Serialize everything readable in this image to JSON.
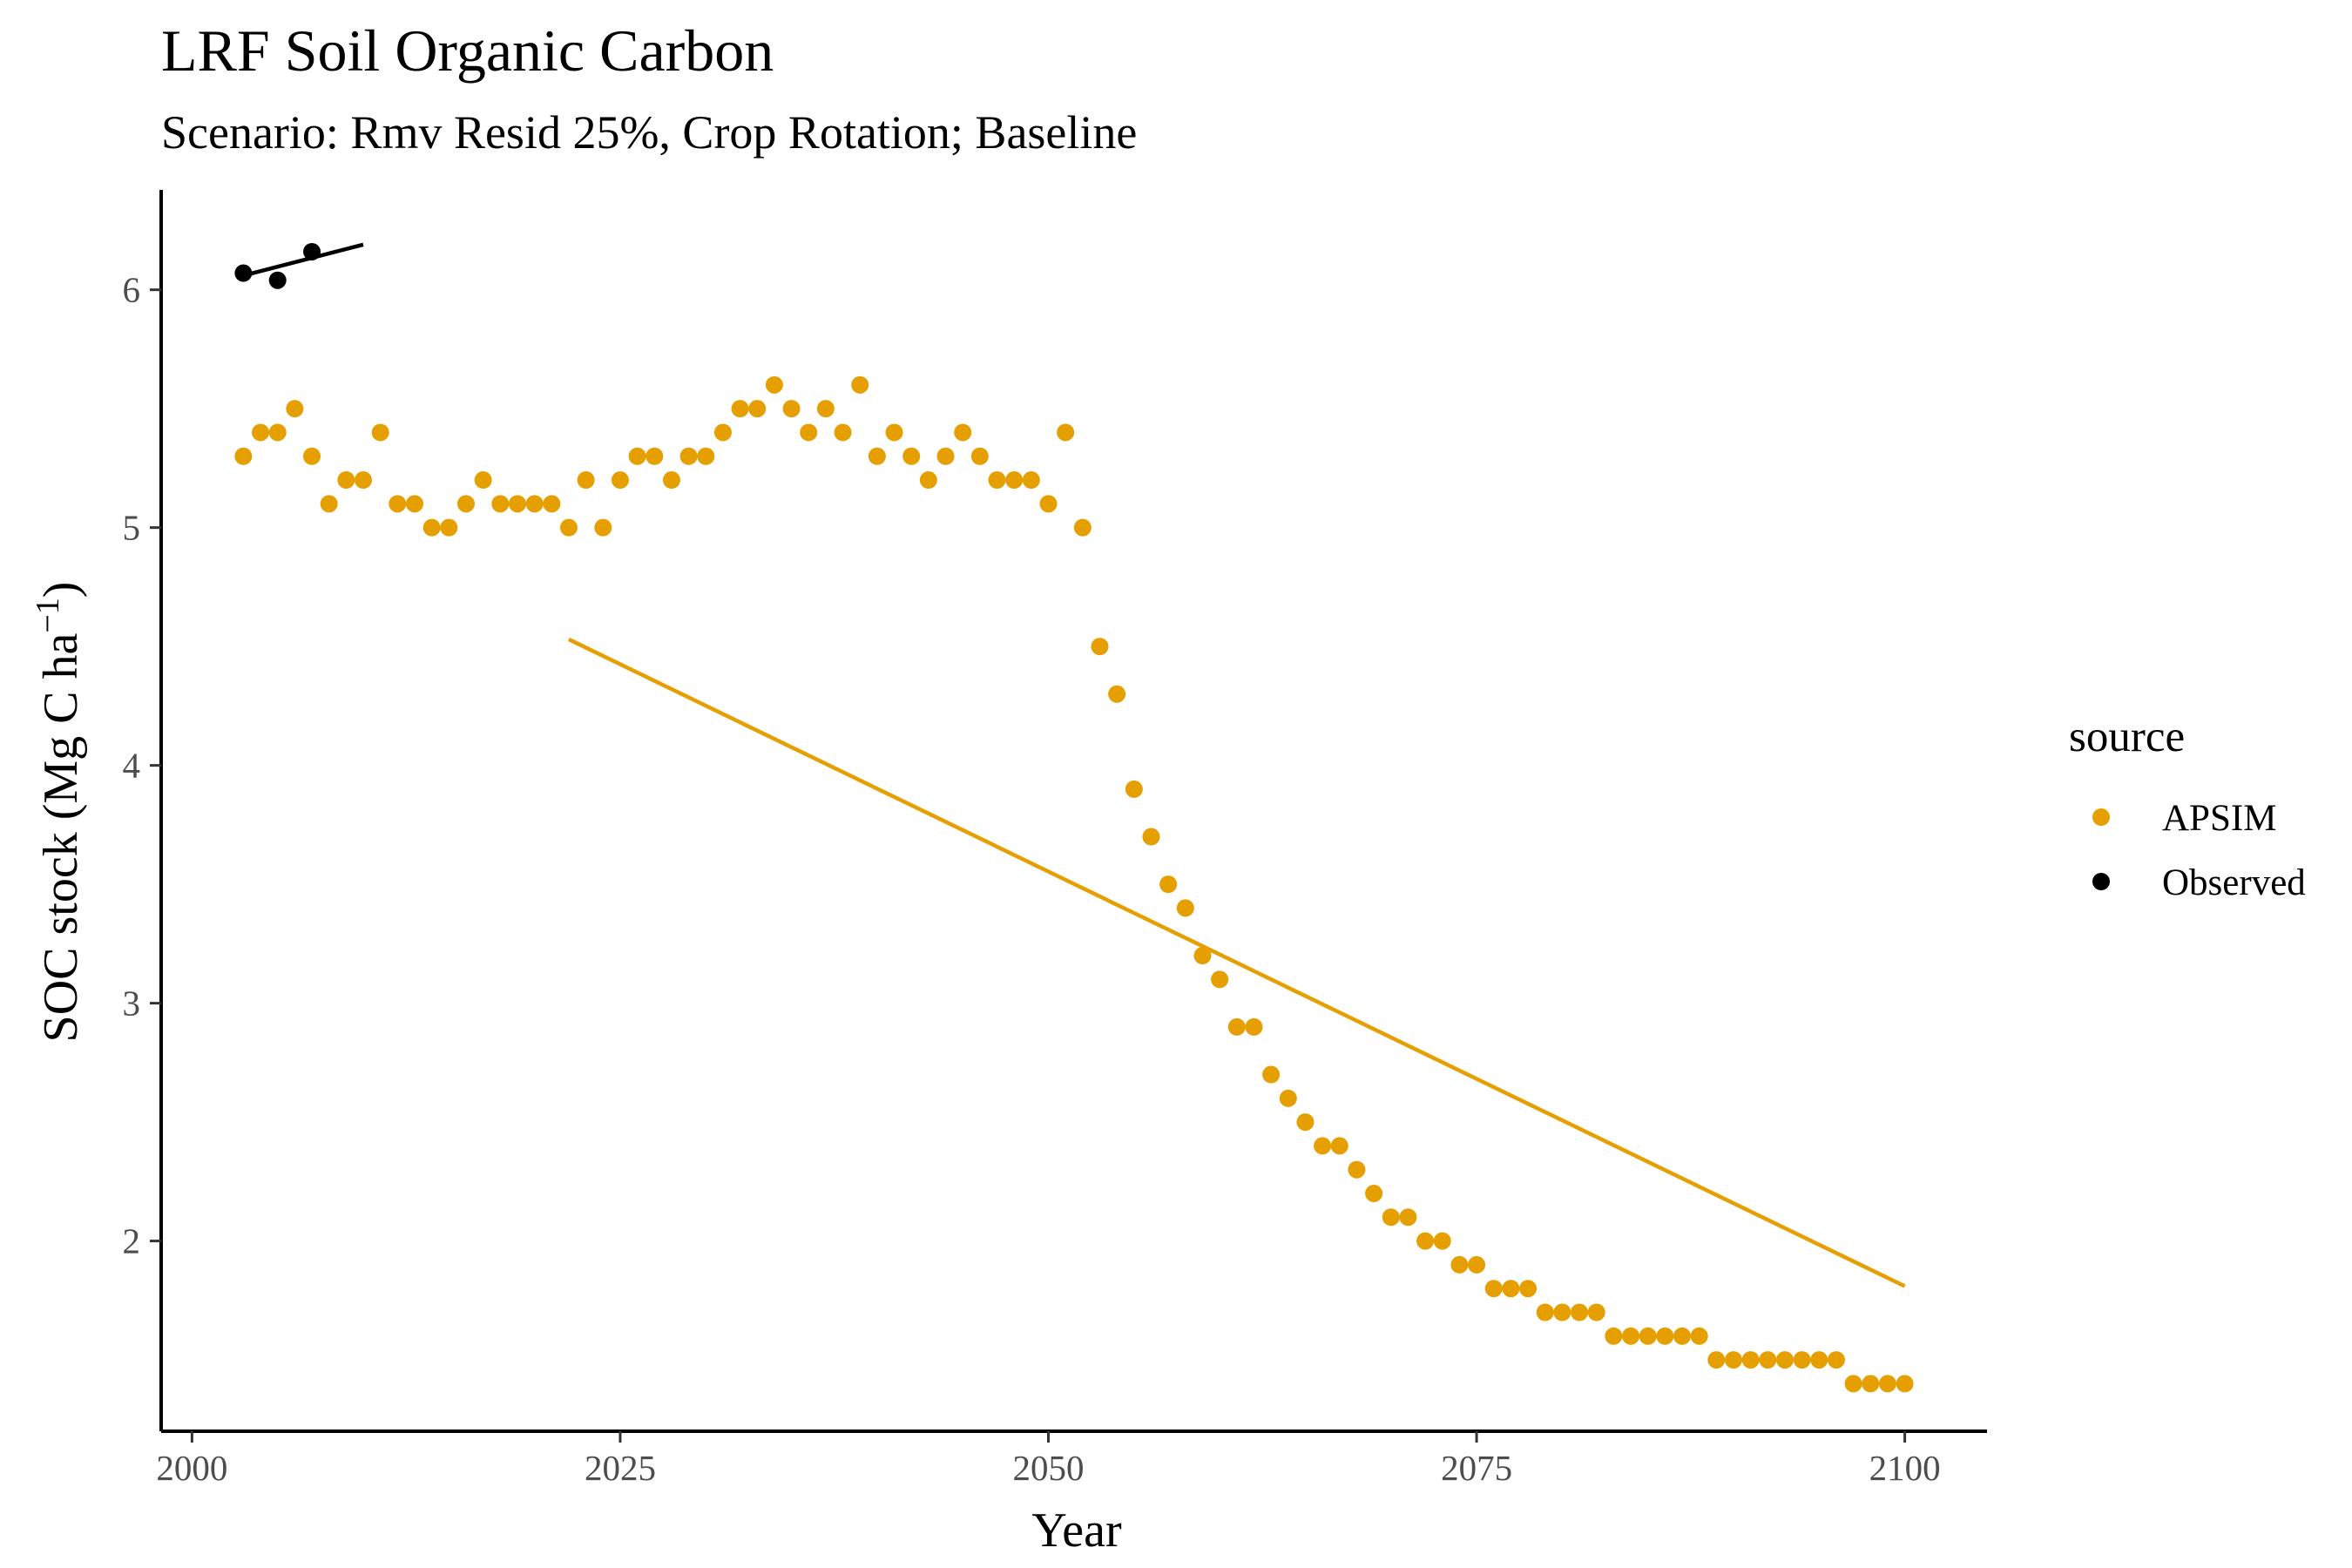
{
  "chart_data": {
    "type": "scatter",
    "title": "LRF Soil Organic Carbon",
    "subtitle": "Scenario: Rmv Resid 25%, Crop Rotation; Baseline",
    "xlabel": "Year",
    "ylabel_main": "SOC stock (Mg C ha",
    "ylabel_sup": "−1",
    "ylabel_end": ")",
    "xlim": [
      1998.2,
      2104.8
    ],
    "ylim": [
      1.2,
      6.42
    ],
    "x_ticks": [
      2000,
      2025,
      2050,
      2075,
      2100
    ],
    "x_tick_labels": [
      "2000",
      "2025",
      "2050",
      "2075",
      "2100"
    ],
    "y_ticks": [
      2,
      3,
      4,
      5,
      6
    ],
    "y_tick_labels": [
      "2",
      "3",
      "4",
      "5",
      "6"
    ],
    "grid": false,
    "legend": {
      "title": "source",
      "position": "right",
      "entries": [
        "APSIM",
        "Observed"
      ]
    },
    "series": [
      {
        "name": "APSIM",
        "color": "#E69F00",
        "x": [
          2003,
          2004,
          2005,
          2006,
          2007,
          2008,
          2009,
          2010,
          2011,
          2012,
          2013,
          2014,
          2015,
          2016,
          2017,
          2018,
          2019,
          2020,
          2021,
          2022,
          2023,
          2024,
          2025,
          2026,
          2027,
          2028,
          2029,
          2030,
          2031,
          2032,
          2033,
          2034,
          2035,
          2036,
          2037,
          2038,
          2039,
          2040,
          2041,
          2042,
          2043,
          2044,
          2045,
          2046,
          2047,
          2048,
          2049,
          2050,
          2051,
          2052,
          2053,
          2054,
          2055,
          2056,
          2057,
          2058,
          2059,
          2060,
          2061,
          2062,
          2063,
          2064,
          2065,
          2066,
          2067,
          2068,
          2069,
          2070,
          2071,
          2072,
          2073,
          2074,
          2075,
          2076,
          2077,
          2078,
          2079,
          2080,
          2081,
          2082,
          2083,
          2084,
          2085,
          2086,
          2087,
          2088,
          2089,
          2090,
          2091,
          2092,
          2093,
          2094,
          2095,
          2096,
          2097,
          2098,
          2099,
          2100
        ],
        "y": [
          5.3,
          5.4,
          5.4,
          5.5,
          5.3,
          5.1,
          5.2,
          5.2,
          5.4,
          5.1,
          5.1,
          5.0,
          5.0,
          5.1,
          5.2,
          5.1,
          5.1,
          5.1,
          5.1,
          5.0,
          5.2,
          5.0,
          5.2,
          5.3,
          5.3,
          5.2,
          5.3,
          5.3,
          5.4,
          5.5,
          5.5,
          5.6,
          5.5,
          5.4,
          5.5,
          5.4,
          5.6,
          5.3,
          5.4,
          5.3,
          5.2,
          5.3,
          5.4,
          5.3,
          5.2,
          5.2,
          5.2,
          5.1,
          5.4,
          5.0,
          4.5,
          4.3,
          3.9,
          3.7,
          3.5,
          3.4,
          3.2,
          3.1,
          2.9,
          2.9,
          2.7,
          2.6,
          2.5,
          2.4,
          2.4,
          2.3,
          2.2,
          2.1,
          2.1,
          2.0,
          2.0,
          1.9,
          1.9,
          1.8,
          1.8,
          1.8,
          1.7,
          1.7,
          1.7,
          1.7,
          1.6,
          1.6,
          1.6,
          1.6,
          1.6,
          1.6,
          1.5,
          1.5,
          1.5,
          1.5,
          1.5,
          1.5,
          1.5,
          1.5,
          1.4,
          1.4,
          1.4,
          1.4
        ],
        "trend": {
          "x": [
            2022,
            2100
          ],
          "y": [
            4.53,
            1.81
          ]
        }
      },
      {
        "name": "Observed",
        "color": "#000000",
        "x": [
          2003,
          2005,
          2007
        ],
        "y": [
          6.07,
          6.04,
          6.16
        ],
        "trend": {
          "x": [
            2003,
            2010
          ],
          "y": [
            6.06,
            6.19
          ]
        }
      }
    ]
  }
}
